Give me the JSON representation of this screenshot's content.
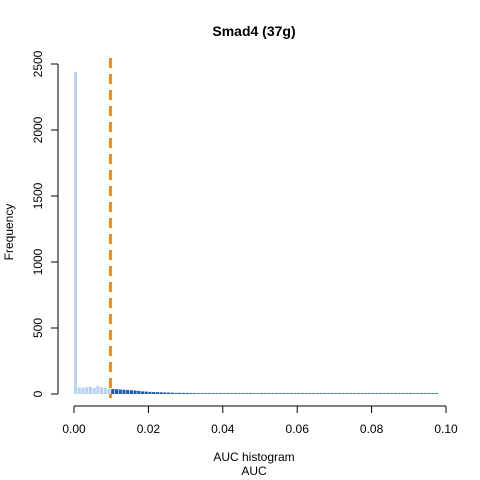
{
  "chart_data": {
    "type": "bar",
    "title": "Smad4 (37g)",
    "xlabel_line1": "AUC histogram",
    "xlabel_line2": "AUC",
    "ylabel": "Frequency",
    "xlim": [
      0,
      0.1
    ],
    "ylim": [
      0,
      2500
    ],
    "x_ticks": [
      0,
      0.02,
      0.04,
      0.06,
      0.08,
      0.1
    ],
    "x_tick_labels": [
      "0.00",
      "0.02",
      "0.04",
      "0.06",
      "0.08",
      "0.10"
    ],
    "y_ticks": [
      0,
      500,
      1000,
      1500,
      2000,
      2500
    ],
    "y_tick_labels": [
      "0",
      "500",
      "1000",
      "1500",
      "2000",
      "2500"
    ],
    "bin_width": 0.001,
    "bins_start": 0,
    "frequencies": [
      2440,
      50,
      48,
      52,
      55,
      45,
      60,
      50,
      47,
      42,
      38,
      36,
      34,
      32,
      30,
      28,
      26,
      24,
      20,
      18,
      16,
      15,
      14,
      13,
      12,
      11,
      10,
      9,
      9,
      8,
      8,
      7,
      7,
      6,
      6,
      6,
      5,
      5,
      5,
      5,
      4,
      4,
      4,
      4,
      4,
      3,
      3,
      3,
      3,
      3,
      3,
      3,
      2,
      2,
      2,
      2,
      2,
      2,
      2,
      2,
      2,
      2,
      2,
      2,
      2,
      1,
      1,
      1,
      1,
      1,
      1,
      1,
      1,
      1,
      1,
      1,
      1,
      1,
      1,
      1,
      1,
      1,
      1,
      1,
      1,
      1,
      1,
      1,
      1,
      1,
      1,
      1,
      1,
      1,
      1,
      1,
      1,
      1
    ],
    "threshold": 0.0098,
    "colors": {
      "below_threshold": "#b8d4ef",
      "above_threshold": "#1a5aa8",
      "threshold_line": "#f08c1e"
    }
  }
}
